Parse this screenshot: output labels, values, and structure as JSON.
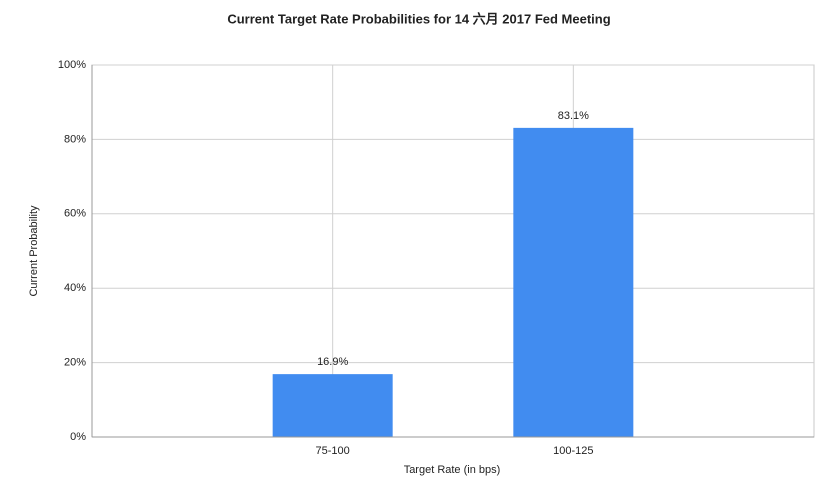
{
  "chart_data": {
    "type": "bar",
    "title": "Current Target Rate Probabilities for 14 六月 2017 Fed Meeting",
    "x_label": "Target Rate (in bps)",
    "y_label": "Current Probability",
    "categories": [
      "75-100",
      "100-125"
    ],
    "values": [
      16.9,
      83.1
    ],
    "value_labels": [
      "16.9%",
      "83.1%"
    ],
    "color": "#418cf0",
    "ylim": [
      0,
      100
    ],
    "yticks": [
      {
        "value": 0,
        "label": "0%"
      },
      {
        "value": 20,
        "label": "20%"
      },
      {
        "value": 40,
        "label": "40%"
      },
      {
        "value": 60,
        "label": "60%"
      },
      {
        "value": 80,
        "label": "80%"
      },
      {
        "value": 100,
        "label": "100%"
      }
    ],
    "grid": true
  }
}
